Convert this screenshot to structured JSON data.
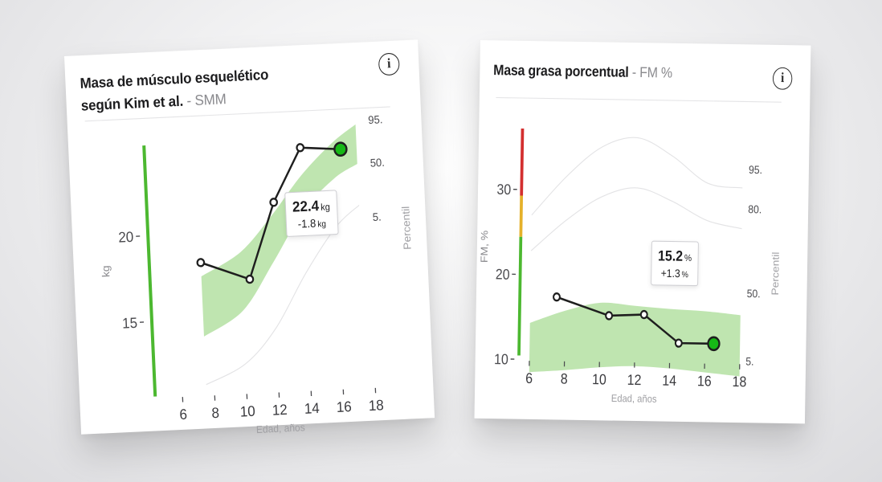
{
  "left_card": {
    "title": "Masa de músculo esquelético",
    "title_line2": "según Kim et al.",
    "subtitle": "SMM",
    "callout": {
      "value": "22.4",
      "unit": "kg",
      "delta": "-1.8",
      "delta_unit": "kg"
    }
  },
  "right_card": {
    "title": "Masa grasa porcentual",
    "subtitle": "FM %",
    "callout": {
      "value": "15.2",
      "unit": "%",
      "delta": "+1.3",
      "delta_unit": "%"
    }
  },
  "icons": {
    "info": "info-icon"
  },
  "colors": {
    "band": "#bfe5b0",
    "line": "#1e1e1e",
    "green": "#4cb830",
    "red": "#d32f2f",
    "amber": "#e5b12a",
    "point_current": "#16b816"
  },
  "chart_data": [
    {
      "type": "line",
      "xlabel": "Edad, años",
      "ylabel": "kg",
      "right_axis_label": "Percentil",
      "xticks": [
        6,
        8,
        10,
        12,
        14,
        16,
        18
      ],
      "yticks": [
        15,
        20
      ],
      "xlim": [
        6,
        18
      ],
      "ylim": [
        10.5,
        26.5
      ],
      "percentile_labels": [
        "95.",
        "50.",
        "5."
      ],
      "series": [
        {
          "x": [
            7.5,
            10.5,
            12.2,
            14.0,
            16.5
          ],
          "y": [
            18.3,
            17.2,
            21.6,
            24.7,
            24.5
          ]
        }
      ],
      "band_upper": {
        "x": [
          7.5,
          10,
          12,
          14,
          16,
          17.5
        ],
        "y": [
          17.5,
          18.8,
          20.8,
          23.1,
          24.9,
          25.9
        ]
      },
      "band_lower": {
        "x": [
          7.5,
          10,
          12,
          14,
          16,
          17.5
        ],
        "y": [
          14.0,
          15.4,
          18.1,
          21.0,
          22.8,
          23.6
        ]
      },
      "p5_line": {
        "x": [
          7.5,
          10,
          12,
          14,
          16,
          17.5
        ],
        "y": [
          11.2,
          12.3,
          14.3,
          17.4,
          20.0,
          21.2
        ]
      }
    },
    {
      "type": "line",
      "xlabel": "Edad, años",
      "ylabel": "FM, %",
      "right_axis_label": "Percentil",
      "xticks": [
        6,
        8,
        10,
        12,
        14,
        16,
        18
      ],
      "yticks": [
        10,
        20,
        30
      ],
      "xlim": [
        6,
        18
      ],
      "ylim": [
        7,
        39
      ],
      "percentile_labels": [
        "95.",
        "80.",
        "50.",
        "5."
      ],
      "series": [
        {
          "x": [
            7.5,
            10.5,
            12.5,
            14.5,
            16.5
          ],
          "y": [
            17.4,
            15.3,
            15.5,
            12.2,
            12.2
          ]
        }
      ],
      "band_upper": {
        "x": [
          6,
          8,
          10,
          12,
          14,
          16,
          18
        ],
        "y": [
          14.3,
          15.8,
          16.8,
          16.5,
          16.2,
          16.0,
          15.6
        ]
      },
      "band_lower": {
        "x": [
          6,
          8,
          10,
          12,
          14,
          16,
          18
        ],
        "y": [
          8.5,
          8.8,
          9.2,
          9.4,
          9.2,
          8.8,
          8.4
        ]
      },
      "p80_line": {
        "x": [
          6,
          8,
          10,
          12,
          14,
          16,
          18
        ],
        "y": [
          22.8,
          26.5,
          29.3,
          30.4,
          28.9,
          26.7,
          25.8
        ]
      },
      "p95_line": {
        "x": [
          6,
          8,
          10,
          12,
          14,
          16,
          18
        ],
        "y": [
          27.0,
          31.7,
          35.2,
          36.3,
          34.2,
          31.1,
          30.6
        ]
      }
    }
  ]
}
